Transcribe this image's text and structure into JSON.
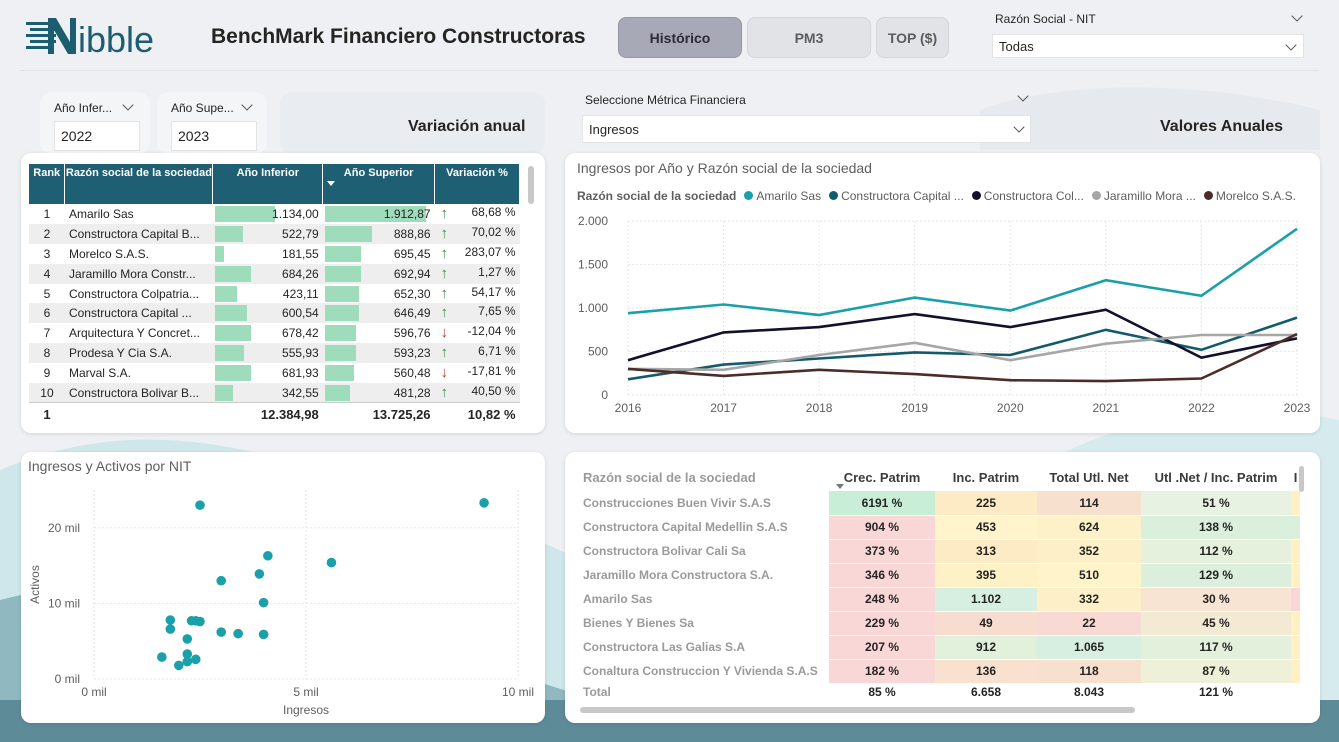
{
  "header": {
    "title": "BenchMark Financiero Constructoras",
    "logo_text": "ibble",
    "nav": [
      {
        "label": "Histórico",
        "active": true
      },
      {
        "label": "PM3",
        "active": false
      },
      {
        "label": "TOP ($)",
        "active": false
      }
    ],
    "razon_social_label": "Razón Social - NIT",
    "razon_social_value": "Todas"
  },
  "filters": {
    "anio_inferior_label": "Año Infer...",
    "anio_inferior_value": "2022",
    "anio_superior_label": "Año Supe...",
    "anio_superior_value": "2023",
    "metrica_label": "Seleccione Métrica Financiera",
    "metrica_value": "Ingresos"
  },
  "sections": {
    "variacion": "Variación anual",
    "valores": "Valores Anuales"
  },
  "rank_table": {
    "headers": [
      "Rank",
      "Razón social de la sociedad",
      "Año Inferior",
      "Año Superior",
      "Variación %"
    ],
    "max_value": 1912.87,
    "rows": [
      {
        "rank": "1",
        "name": "Amarilo Sas",
        "inf": "1.134,00",
        "inf_n": 1134.0,
        "sup": "1.912,87",
        "sup_n": 1912.87,
        "var": "68,68 %",
        "dir": "up"
      },
      {
        "rank": "2",
        "name": "Constructora Capital B...",
        "inf": "522,79",
        "inf_n": 522.79,
        "sup": "888,86",
        "sup_n": 888.86,
        "var": "70,02 %",
        "dir": "up"
      },
      {
        "rank": "3",
        "name": "Morelco S.A.S.",
        "inf": "181,55",
        "inf_n": 181.55,
        "sup": "695,45",
        "sup_n": 695.45,
        "var": "283,07 %",
        "dir": "up"
      },
      {
        "rank": "4",
        "name": "Jaramillo Mora Constr...",
        "inf": "684,26",
        "inf_n": 684.26,
        "sup": "692,94",
        "sup_n": 692.94,
        "var": "1,27 %",
        "dir": "up"
      },
      {
        "rank": "5",
        "name": "Constructora Colpatria...",
        "inf": "423,11",
        "inf_n": 423.11,
        "sup": "652,30",
        "sup_n": 652.3,
        "var": "54,17 %",
        "dir": "up"
      },
      {
        "rank": "6",
        "name": "Constructora Capital ...",
        "inf": "600,54",
        "inf_n": 600.54,
        "sup": "646,49",
        "sup_n": 646.49,
        "var": "7,65 %",
        "dir": "up"
      },
      {
        "rank": "7",
        "name": "Arquitectura Y Concret...",
        "inf": "678,42",
        "inf_n": 678.42,
        "sup": "596,76",
        "sup_n": 596.76,
        "var": "-12,04 %",
        "dir": "down"
      },
      {
        "rank": "8",
        "name": "Prodesa Y Cia S.A.",
        "inf": "555,93",
        "inf_n": 555.93,
        "sup": "593,23",
        "sup_n": 593.23,
        "var": "6,71 %",
        "dir": "up"
      },
      {
        "rank": "9",
        "name": "Marval S.A.",
        "inf": "681,93",
        "inf_n": 681.93,
        "sup": "560,48",
        "sup_n": 560.48,
        "var": "-17,81 %",
        "dir": "down"
      },
      {
        "rank": "10",
        "name": "Constructora Bolivar B...",
        "inf": "342,55",
        "inf_n": 342.55,
        "sup": "481,28",
        "sup_n": 481.28,
        "var": "40,50 %",
        "dir": "up"
      }
    ],
    "total": {
      "rank": "1",
      "inf": "12.384,98",
      "sup": "13.725,26",
      "var": "10,82 %"
    }
  },
  "chart_data": [
    {
      "type": "line",
      "title": "Ingresos por Año y Razón social de la sociedad",
      "legend_title": "Razón social de la sociedad",
      "legend_position": "top-left",
      "x": [
        2016,
        2017,
        2018,
        2019,
        2020,
        2021,
        2022,
        2023
      ],
      "ylim": [
        0,
        2000
      ],
      "yticks": [
        0,
        500,
        1000,
        1500,
        2000
      ],
      "ytick_labels": [
        "0",
        "500",
        "1.000",
        "1.500",
        "2.000"
      ],
      "grid": true,
      "series": [
        {
          "name": "Amarilo Sas",
          "color": "#1aa0a8",
          "values": [
            940,
            1040,
            920,
            1120,
            970,
            1320,
            1140,
            1910
          ]
        },
        {
          "name": "Constructora Capital ...",
          "color": "#135b6b",
          "values": [
            180,
            350,
            420,
            490,
            460,
            750,
            520,
            890
          ]
        },
        {
          "name": "Constructora Col...",
          "color": "#12112d",
          "values": [
            400,
            720,
            780,
            930,
            780,
            980,
            430,
            650
          ]
        },
        {
          "name": "Jaramillo Mora ...",
          "color": "#a6a6a6",
          "values": [
            300,
            290,
            460,
            600,
            400,
            590,
            690,
            690
          ]
        },
        {
          "name": "Morelco S.A.S.",
          "color": "#4b2c28",
          "values": [
            300,
            220,
            290,
            240,
            170,
            160,
            190,
            700
          ]
        }
      ]
    },
    {
      "type": "scatter",
      "title": "Ingresos y Activos por NIT",
      "xlabel": "Ingresos",
      "ylabel": "Activos",
      "xlim": [
        0,
        10
      ],
      "ylim": [
        0,
        25
      ],
      "xticks": [
        0,
        5,
        10
      ],
      "xtick_labels": [
        "0 mil",
        "5 mil",
        "10 mil"
      ],
      "yticks": [
        0,
        10,
        20
      ],
      "ytick_labels": [
        "0 mil",
        "10 mil",
        "20 mil"
      ],
      "grid": true,
      "color": "#1aa0a8",
      "points": [
        [
          9.2,
          23.3
        ],
        [
          2.5,
          23.0
        ],
        [
          5.6,
          15.4
        ],
        [
          4.1,
          16.3
        ],
        [
          3.9,
          13.9
        ],
        [
          3.0,
          13.0
        ],
        [
          4.0,
          10.1
        ],
        [
          1.8,
          7.8
        ],
        [
          2.3,
          7.7
        ],
        [
          2.4,
          7.7
        ],
        [
          2.5,
          7.6
        ],
        [
          1.8,
          6.6
        ],
        [
          3.0,
          6.2
        ],
        [
          3.4,
          6.0
        ],
        [
          4.0,
          5.9
        ],
        [
          2.2,
          5.3
        ],
        [
          2.2,
          3.3
        ],
        [
          1.6,
          2.9
        ],
        [
          2.4,
          2.6
        ],
        [
          2.2,
          2.3
        ],
        [
          2.0,
          1.8
        ]
      ]
    }
  ],
  "matrix": {
    "headers": [
      "Razón social de la sociedad",
      "Crec. Patrim",
      "Inc. Patrim",
      "Total Utl. Net",
      "Utl .Net / Inc. Patrim",
      "I"
    ],
    "rows": [
      {
        "name": "Construcciones Buen Vivir S.A.S",
        "c1": "6191 %",
        "c2": "225",
        "c3": "114",
        "c4": "51 %",
        "k": [
          "#c9eed8",
          "#fdebc6",
          "#f8e0cf",
          "#e7f2e2",
          "#fff1c4"
        ]
      },
      {
        "name": "Constructora Capital Medellin S.A.S",
        "c1": "904 %",
        "c2": "453",
        "c3": "624",
        "c4": "138 %",
        "k": [
          "#f8d7d6",
          "#fff4cc",
          "#fdf1c7",
          "#dbefdd",
          "#dbefdd"
        ]
      },
      {
        "name": "Constructora Bolivar Cali Sa",
        "c1": "373 %",
        "c2": "313",
        "c3": "352",
        "c4": "112 %",
        "k": [
          "#f8d7d6",
          "#fdebc6",
          "#fdf0c8",
          "#e5f1dd",
          "#fff1c4"
        ]
      },
      {
        "name": "Jaramillo Mora Constructora S.A.",
        "c1": "346 %",
        "c2": "395",
        "c3": "510",
        "c4": "129 %",
        "k": [
          "#f8d7d6",
          "#fff1c6",
          "#fff4c9",
          "#dcefdc",
          "#fff1c4"
        ]
      },
      {
        "name": "Amarilo Sas",
        "c1": "248 %",
        "c2": "1.102",
        "c3": "332",
        "c4": "30 %",
        "k": [
          "#f8d7d6",
          "#d6efe0",
          "#fdf0c8",
          "#f8e4d2",
          "#f8d7d6"
        ]
      },
      {
        "name": "Bienes Y Bienes Sa",
        "c1": "229 %",
        "c2": "49",
        "c3": "22",
        "c4": "45 %",
        "k": [
          "#f8d7d6",
          "#f8dccf",
          "#f8d9d4",
          "#f3ead3",
          "#fff1c4"
        ]
      },
      {
        "name": "Constructora Las Galias S.A",
        "c1": "207 %",
        "c2": "912",
        "c3": "1.065",
        "c4": "117 %",
        "k": [
          "#f8d7d6",
          "#e1f1dc",
          "#d6efe0",
          "#e3f0dc",
          "#fff1c4"
        ]
      },
      {
        "name": "Conaltura Construccion Y Vivienda S.A.S",
        "c1": "182 %",
        "c2": "136",
        "c3": "118",
        "c4": "87 %",
        "k": [
          "#f8d7d6",
          "#f9e1cf",
          "#f8e0cf",
          "#eef0d7",
          "#fff1c4"
        ]
      }
    ],
    "total": {
      "name": "Total",
      "c1": "85 %",
      "c2": "6.658",
      "c3": "8.043",
      "c4": "121 %"
    }
  }
}
